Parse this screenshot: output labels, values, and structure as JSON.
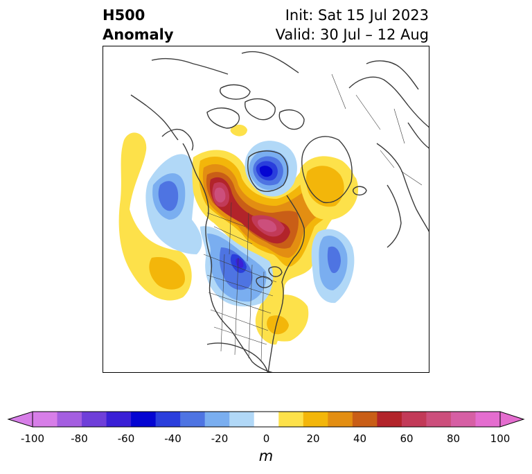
{
  "title": {
    "left_line1": "H500",
    "left_line2": "Anomaly",
    "right_line1": "Init: Sat 15 Jul 2023",
    "right_line2": "Valid: 30 Jul – 12 Aug"
  },
  "colorbar": {
    "unit": "m",
    "ticks": [
      "-100",
      "-80",
      "-60",
      "-40",
      "-20",
      "0",
      "20",
      "40",
      "60",
      "80",
      "100"
    ],
    "colors": [
      "#d77ee8",
      "#a45ee0",
      "#6f3fd9",
      "#3a20d6",
      "#0505d2",
      "#2a3edc",
      "#4e74e2",
      "#7aaef0",
      "#b1d8f7",
      "#ffffff",
      "#fde14a",
      "#f3b60a",
      "#e38e12",
      "#c95e17",
      "#b2242a",
      "#c23a58",
      "#cc4f7c",
      "#d65fa4",
      "#e46dcf"
    ],
    "extend_low": "#d77ee8",
    "extend_high": "#e46dcf"
  },
  "map": {
    "projection": "north-polar-stereographic",
    "region": "North America / North Atlantic / Arctic",
    "colors": {
      "yellow": "#fde14a",
      "gold": "#f3b60a",
      "orange": "#e38e12",
      "rust": "#c95e17",
      "red": "#b2242a",
      "rose": "#c23a58",
      "pink": "#cc4f7c",
      "paleblue": "#b1d8f7",
      "lightblue": "#7aaef0",
      "midblue": "#4e74e2",
      "blue": "#2a3edc",
      "deepblue": "#0505d2",
      "navy": "#3a20d6",
      "coast": "#3a3a3a"
    }
  }
}
